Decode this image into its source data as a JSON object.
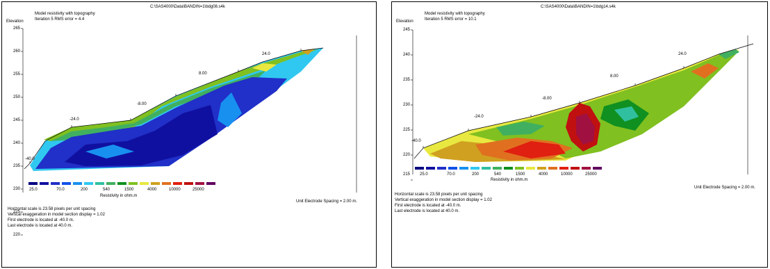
{
  "panels": [
    {
      "path": "C:\\SAS4000\\Data\\BANDIN=1\\bdg08.s4k",
      "title": "Model resistivity with topography",
      "iteration": "Iteration 5 RMS error = 4.4",
      "ylabel": "Elevation",
      "yticks": [
        "265",
        "260",
        "255",
        "250",
        "245",
        "240",
        "235",
        "230",
        "225",
        "220"
      ],
      "legend_values": [
        "25.0",
        "70.0",
        "200",
        "540",
        "1500",
        "4000",
        "10000",
        "25000"
      ],
      "legend_caption": "Resistivity in ohm.m",
      "unit_spacing": "Unit Electrode Spacing = 2.00 m.",
      "footer": [
        "Horizontal scale is 23.58 pixels per unit spacing",
        "Vertical exaggeration in model section display = 1.02",
        "First electrode is located at -40.0  m.",
        "Last electrode is located at 40.0 m."
      ],
      "section_labels": [
        "-40.0",
        "-24.0",
        "-8.00",
        "8.00",
        "24.0"
      ]
    },
    {
      "path": "C:\\SAS4000\\Data\\BANDIN=1\\bdg14.s4k",
      "title": "Model resistivity with topography",
      "iteration": "Iteration 5 RMS error = 10.1",
      "ylabel": "Elevation",
      "yticks": [
        "245",
        "240",
        "235",
        "230",
        "225",
        "220",
        "215"
      ],
      "legend_values": [
        "25.0",
        "70.0",
        "200",
        "540",
        "1500",
        "4000",
        "10000",
        "25000"
      ],
      "legend_caption": "Resistivity in ohm.m",
      "unit_spacing": "Unit Electrode Spacing = 2.00 m.",
      "footer": [
        "Horizontal scale is 23.58 pixels per unit spacing",
        "Vertical exaggeration in model section display = 1.02",
        "First electrode is located at -40.0  m.",
        "Last electrode is located at 40.0 m."
      ],
      "section_labels": [
        "-40.0",
        "-24.0",
        "-8.00",
        "8.00",
        "24.0"
      ]
    }
  ],
  "chart_data": [
    {
      "type": "heatmap",
      "title": "Model resistivity with topography",
      "subtitle": "Iteration 5 RMS error = 4.4",
      "ylabel": "Elevation",
      "xlabel": "",
      "ylim": [
        220,
        265
      ],
      "x_range": [
        -40,
        40
      ],
      "electrode_labels": [
        -40,
        -24,
        -8,
        8,
        24
      ],
      "colorbar": {
        "label": "Resistivity in ohm.m",
        "ticks": [
          25,
          70,
          200,
          540,
          1500,
          4000,
          10000,
          25000
        ],
        "colors": [
          "#000080",
          "#1010a0",
          "#2030c8",
          "#1050e8",
          "#1890f0",
          "#30c8f0",
          "#30c0a0",
          "#40b060",
          "#109020",
          "#80c020",
          "#e8e840",
          "#d0a020",
          "#e07020",
          "#e02010",
          "#c01010",
          "#a01040",
          "#600060"
        ]
      }
    },
    {
      "type": "heatmap",
      "title": "Model resistivity with topography",
      "subtitle": "Iteration 5 RMS error = 10.1",
      "ylabel": "Elevation",
      "xlabel": "",
      "ylim": [
        215,
        245
      ],
      "x_range": [
        -40,
        40
      ],
      "electrode_labels": [
        -40,
        -24,
        -8,
        8,
        24
      ],
      "colorbar": {
        "label": "Resistivity in ohm.m",
        "ticks": [
          25,
          70,
          200,
          540,
          1500,
          4000,
          10000,
          25000
        ],
        "colors": [
          "#000080",
          "#1010a0",
          "#2030c8",
          "#1050e8",
          "#1890f0",
          "#30c8f0",
          "#30c0a0",
          "#40b060",
          "#109020",
          "#80c020",
          "#e8e840",
          "#d0a020",
          "#e07020",
          "#e02010",
          "#c01010",
          "#a01040",
          "#600060"
        ]
      }
    }
  ]
}
